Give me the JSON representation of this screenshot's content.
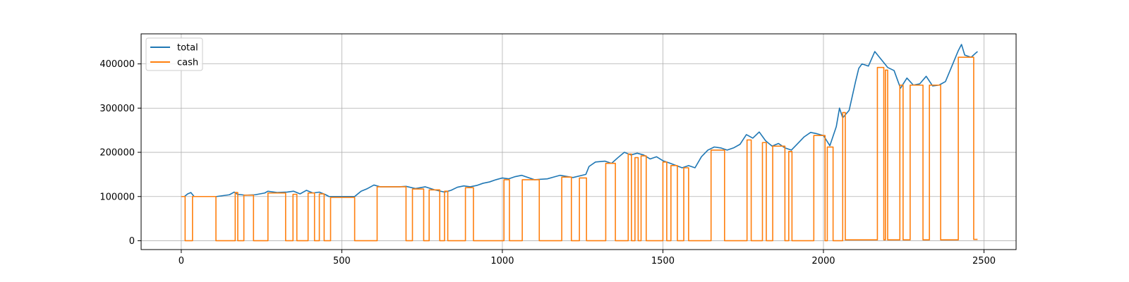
{
  "chart_data": {
    "type": "line",
    "title": "",
    "xlabel": "",
    "ylabel": "",
    "xlim": [
      -125,
      2600
    ],
    "ylim": [
      -20000,
      468000
    ],
    "grid": true,
    "legend_position": "top-left",
    "x_ticks": [
      {
        "value": 0,
        "label": "0"
      },
      {
        "value": 500,
        "label": "500"
      },
      {
        "value": 1000,
        "label": "1000"
      },
      {
        "value": 1500,
        "label": "1500"
      },
      {
        "value": 2000,
        "label": "2000"
      },
      {
        "value": 2500,
        "label": "2500"
      }
    ],
    "y_ticks": [
      {
        "value": 0,
        "label": "0"
      },
      {
        "value": 100000,
        "label": "100000"
      },
      {
        "value": 200000,
        "label": "200000"
      },
      {
        "value": 300000,
        "label": "300000"
      },
      {
        "value": 400000,
        "label": "400000"
      }
    ],
    "series": [
      {
        "name": "total",
        "color": "#1f77b4",
        "points": [
          [
            0,
            100000
          ],
          [
            10,
            100000
          ],
          [
            20,
            106000
          ],
          [
            30,
            109000
          ],
          [
            40,
            100000
          ],
          [
            110,
            100000
          ],
          [
            130,
            102000
          ],
          [
            150,
            104000
          ],
          [
            165,
            110000
          ],
          [
            175,
            105000
          ],
          [
            200,
            103000
          ],
          [
            230,
            104000
          ],
          [
            260,
            108000
          ],
          [
            270,
            112000
          ],
          [
            300,
            109000
          ],
          [
            330,
            110000
          ],
          [
            350,
            112000
          ],
          [
            370,
            106000
          ],
          [
            390,
            114000
          ],
          [
            410,
            108000
          ],
          [
            430,
            110000
          ],
          [
            450,
            104000
          ],
          [
            460,
            100000
          ],
          [
            540,
            100000
          ],
          [
            560,
            112000
          ],
          [
            580,
            118000
          ],
          [
            600,
            126000
          ],
          [
            620,
            122000
          ],
          [
            680,
            122000
          ],
          [
            700,
            123000
          ],
          [
            730,
            118000
          ],
          [
            760,
            122000
          ],
          [
            790,
            115000
          ],
          [
            820,
            110000
          ],
          [
            840,
            114000
          ],
          [
            860,
            121000
          ],
          [
            880,
            124000
          ],
          [
            900,
            122000
          ],
          [
            920,
            125000
          ],
          [
            940,
            130000
          ],
          [
            960,
            133000
          ],
          [
            980,
            138000
          ],
          [
            1000,
            142000
          ],
          [
            1020,
            140000
          ],
          [
            1040,
            145000
          ],
          [
            1060,
            148000
          ],
          [
            1100,
            138000
          ],
          [
            1140,
            140000
          ],
          [
            1160,
            144000
          ],
          [
            1180,
            148000
          ],
          [
            1220,
            143000
          ],
          [
            1260,
            150000
          ],
          [
            1270,
            168000
          ],
          [
            1290,
            178000
          ],
          [
            1320,
            180000
          ],
          [
            1340,
            175000
          ],
          [
            1360,
            188000
          ],
          [
            1380,
            200000
          ],
          [
            1400,
            194000
          ],
          [
            1420,
            198000
          ],
          [
            1440,
            194000
          ],
          [
            1460,
            185000
          ],
          [
            1480,
            190000
          ],
          [
            1500,
            181000
          ],
          [
            1520,
            176000
          ],
          [
            1560,
            165000
          ],
          [
            1580,
            170000
          ],
          [
            1600,
            165000
          ],
          [
            1620,
            190000
          ],
          [
            1640,
            205000
          ],
          [
            1660,
            212000
          ],
          [
            1680,
            210000
          ],
          [
            1700,
            205000
          ],
          [
            1720,
            210000
          ],
          [
            1740,
            218000
          ],
          [
            1760,
            240000
          ],
          [
            1780,
            232000
          ],
          [
            1800,
            246000
          ],
          [
            1820,
            226000
          ],
          [
            1840,
            214000
          ],
          [
            1860,
            220000
          ],
          [
            1880,
            210000
          ],
          [
            1900,
            205000
          ],
          [
            1920,
            220000
          ],
          [
            1940,
            235000
          ],
          [
            1960,
            245000
          ],
          [
            1980,
            242000
          ],
          [
            2000,
            238000
          ],
          [
            2020,
            215000
          ],
          [
            2040,
            258000
          ],
          [
            2050,
            300000
          ],
          [
            2060,
            278000
          ],
          [
            2080,
            295000
          ],
          [
            2100,
            360000
          ],
          [
            2110,
            390000
          ],
          [
            2120,
            400000
          ],
          [
            2140,
            395000
          ],
          [
            2160,
            428000
          ],
          [
            2180,
            410000
          ],
          [
            2200,
            392000
          ],
          [
            2220,
            385000
          ],
          [
            2240,
            345000
          ],
          [
            2260,
            368000
          ],
          [
            2280,
            352000
          ],
          [
            2300,
            355000
          ],
          [
            2320,
            372000
          ],
          [
            2340,
            350000
          ],
          [
            2360,
            352000
          ],
          [
            2380,
            360000
          ],
          [
            2400,
            395000
          ],
          [
            2420,
            430000
          ],
          [
            2430,
            444000
          ],
          [
            2440,
            420000
          ],
          [
            2460,
            415000
          ],
          [
            2475,
            425000
          ],
          [
            2480,
            428000
          ]
        ]
      },
      {
        "name": "cash",
        "color": "#ff7f0e",
        "points": [
          [
            0,
            100000
          ],
          [
            12,
            100000
          ],
          [
            12,
            0
          ],
          [
            35,
            0
          ],
          [
            35,
            100000
          ],
          [
            108,
            100000
          ],
          [
            108,
            0
          ],
          [
            168,
            0
          ],
          [
            168,
            109000
          ],
          [
            176,
            109000
          ],
          [
            176,
            0
          ],
          [
            195,
            0
          ],
          [
            195,
            103000
          ],
          [
            225,
            103000
          ],
          [
            225,
            0
          ],
          [
            270,
            0
          ],
          [
            270,
            108000
          ],
          [
            325,
            108000
          ],
          [
            325,
            0
          ],
          [
            348,
            0
          ],
          [
            348,
            105000
          ],
          [
            360,
            105000
          ],
          [
            360,
            0
          ],
          [
            395,
            0
          ],
          [
            395,
            108000
          ],
          [
            415,
            108000
          ],
          [
            415,
            0
          ],
          [
            430,
            0
          ],
          [
            430,
            106000
          ],
          [
            445,
            106000
          ],
          [
            445,
            0
          ],
          [
            465,
            0
          ],
          [
            465,
            98000
          ],
          [
            540,
            98000
          ],
          [
            540,
            0
          ],
          [
            610,
            0
          ],
          [
            610,
            122000
          ],
          [
            700,
            122000
          ],
          [
            700,
            0
          ],
          [
            720,
            0
          ],
          [
            720,
            117000
          ],
          [
            755,
            117000
          ],
          [
            755,
            0
          ],
          [
            772,
            0
          ],
          [
            772,
            115000
          ],
          [
            805,
            115000
          ],
          [
            805,
            0
          ],
          [
            820,
            0
          ],
          [
            820,
            112000
          ],
          [
            830,
            112000
          ],
          [
            830,
            0
          ],
          [
            885,
            0
          ],
          [
            885,
            120000
          ],
          [
            910,
            120000
          ],
          [
            910,
            0
          ],
          [
            1005,
            0
          ],
          [
            1005,
            138000
          ],
          [
            1022,
            138000
          ],
          [
            1022,
            0
          ],
          [
            1062,
            0
          ],
          [
            1062,
            138000
          ],
          [
            1115,
            138000
          ],
          [
            1115,
            0
          ],
          [
            1185,
            0
          ],
          [
            1185,
            144000
          ],
          [
            1215,
            144000
          ],
          [
            1215,
            0
          ],
          [
            1240,
            0
          ],
          [
            1240,
            142000
          ],
          [
            1262,
            142000
          ],
          [
            1262,
            0
          ],
          [
            1322,
            0
          ],
          [
            1322,
            175000
          ],
          [
            1352,
            175000
          ],
          [
            1352,
            0
          ],
          [
            1392,
            0
          ],
          [
            1392,
            196000
          ],
          [
            1402,
            196000
          ],
          [
            1402,
            0
          ],
          [
            1413,
            0
          ],
          [
            1413,
            188000
          ],
          [
            1423,
            188000
          ],
          [
            1423,
            0
          ],
          [
            1432,
            0
          ],
          [
            1432,
            192000
          ],
          [
            1448,
            192000
          ],
          [
            1448,
            0
          ],
          [
            1500,
            0
          ],
          [
            1500,
            178000
          ],
          [
            1512,
            178000
          ],
          [
            1512,
            0
          ],
          [
            1525,
            0
          ],
          [
            1525,
            170000
          ],
          [
            1545,
            170000
          ],
          [
            1545,
            0
          ],
          [
            1565,
            0
          ],
          [
            1565,
            165000
          ],
          [
            1580,
            165000
          ],
          [
            1580,
            0
          ],
          [
            1650,
            0
          ],
          [
            1650,
            205000
          ],
          [
            1692,
            205000
          ],
          [
            1692,
            0
          ],
          [
            1762,
            0
          ],
          [
            1762,
            228000
          ],
          [
            1775,
            228000
          ],
          [
            1775,
            0
          ],
          [
            1810,
            0
          ],
          [
            1810,
            222000
          ],
          [
            1822,
            222000
          ],
          [
            1822,
            0
          ],
          [
            1842,
            0
          ],
          [
            1842,
            214000
          ],
          [
            1880,
            214000
          ],
          [
            1880,
            0
          ],
          [
            1892,
            0
          ],
          [
            1892,
            202000
          ],
          [
            1902,
            202000
          ],
          [
            1902,
            0
          ],
          [
            1970,
            0
          ],
          [
            1970,
            238000
          ],
          [
            2005,
            238000
          ],
          [
            2005,
            0
          ],
          [
            2012,
            0
          ],
          [
            2012,
            212000
          ],
          [
            2030,
            212000
          ],
          [
            2030,
            0
          ],
          [
            2060,
            0
          ],
          [
            2060,
            290000
          ],
          [
            2068,
            290000
          ],
          [
            2068,
            2000
          ],
          [
            2168,
            2000
          ],
          [
            2168,
            392000
          ],
          [
            2188,
            392000
          ],
          [
            2188,
            2000
          ],
          [
            2193,
            2000
          ],
          [
            2193,
            386000
          ],
          [
            2200,
            386000
          ],
          [
            2200,
            2000
          ],
          [
            2238,
            2000
          ],
          [
            2238,
            352000
          ],
          [
            2248,
            352000
          ],
          [
            2248,
            2000
          ],
          [
            2270,
            2000
          ],
          [
            2270,
            352000
          ],
          [
            2310,
            352000
          ],
          [
            2310,
            2000
          ],
          [
            2330,
            2000
          ],
          [
            2330,
            352000
          ],
          [
            2365,
            352000
          ],
          [
            2365,
            2000
          ],
          [
            2420,
            2000
          ],
          [
            2420,
            415000
          ],
          [
            2468,
            415000
          ],
          [
            2468,
            3000
          ],
          [
            2480,
            3000
          ]
        ]
      }
    ]
  }
}
